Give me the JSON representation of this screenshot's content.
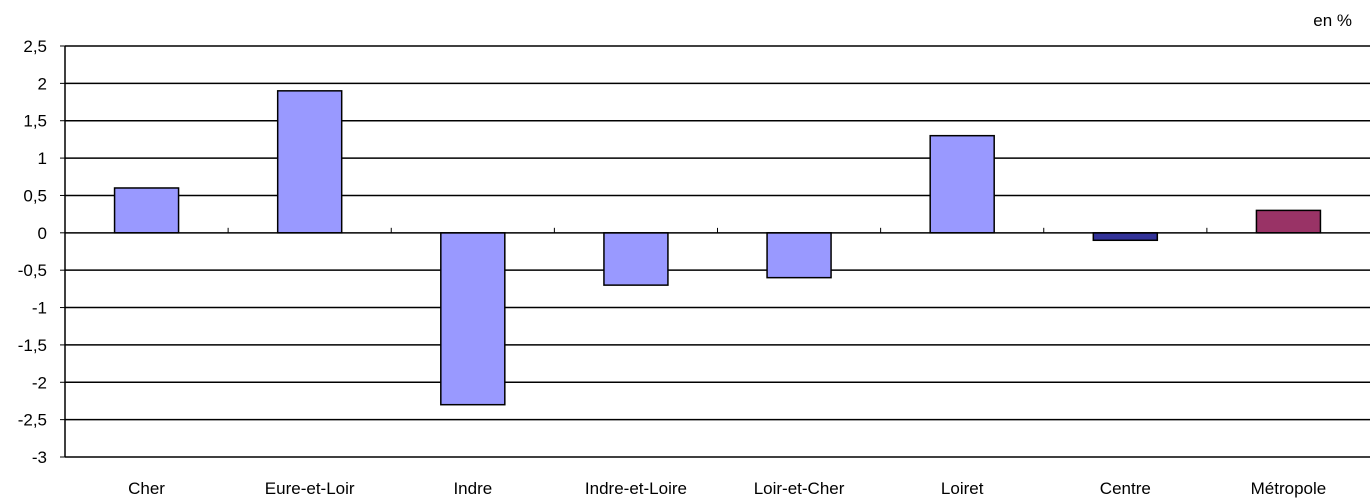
{
  "unit_label": "en %",
  "chart_data": {
    "type": "bar",
    "title": "",
    "xlabel": "",
    "ylabel": "",
    "unit": "en %",
    "categories": [
      "Cher",
      "Eure-et-Loir",
      "Indre",
      "Indre-et-Loire",
      "Loir-et-Cher",
      "Loiret",
      "Centre",
      "Métropole"
    ],
    "values": [
      0.6,
      1.9,
      -2.3,
      -0.7,
      -0.6,
      1.3,
      -0.1,
      0.3
    ],
    "bar_colors": [
      "#9999ff",
      "#9999ff",
      "#9999ff",
      "#9999ff",
      "#9999ff",
      "#9999ff",
      "#333399",
      "#993366"
    ],
    "ylim": [
      -3,
      2.5
    ],
    "yticks": [
      "2,5",
      "2",
      "1,5",
      "1",
      "0,5",
      "0",
      "-0,5",
      "-1",
      "-1,5",
      "-2",
      "-2,5",
      "-3"
    ],
    "grid": true,
    "legend": "none"
  }
}
